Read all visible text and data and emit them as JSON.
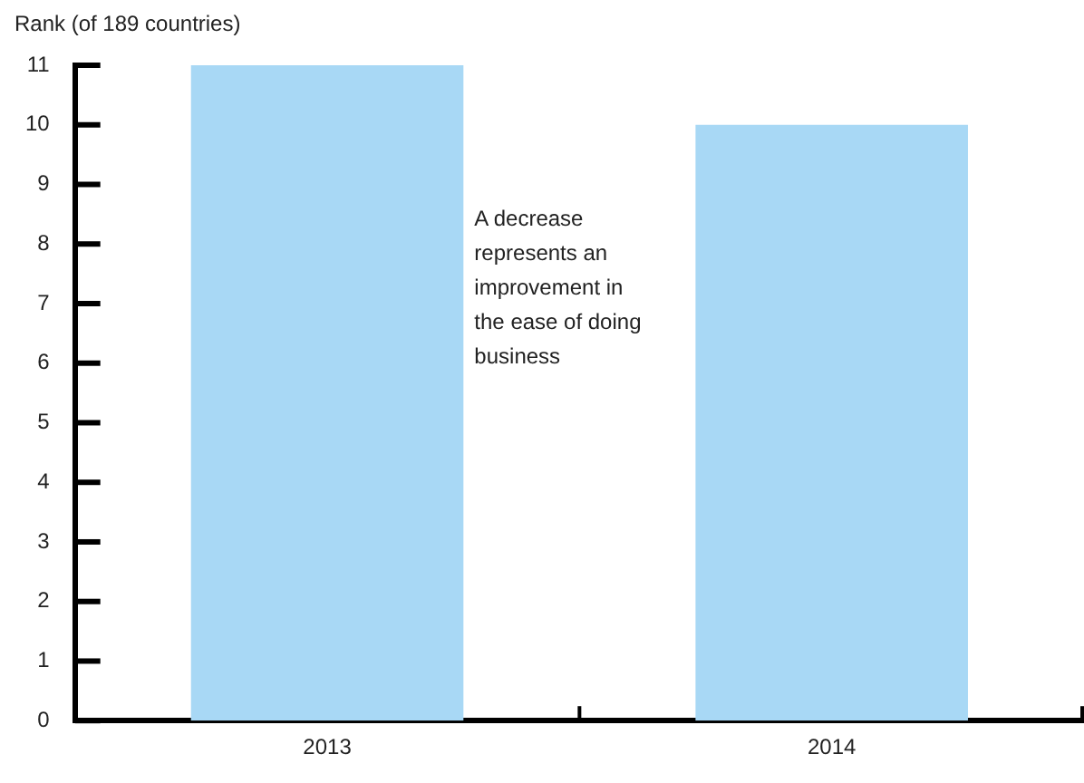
{
  "chart_data": {
    "type": "bar",
    "ylabel": "Rank (of 189 countries)",
    "categories": [
      "2013",
      "2014"
    ],
    "values": [
      11,
      10
    ],
    "color": "#a8d8f5",
    "ylim": [
      0,
      11
    ],
    "yticks": [
      0,
      1,
      2,
      3,
      4,
      5,
      6,
      7,
      8,
      9,
      10,
      11
    ],
    "grid": false,
    "legend": false,
    "annotations": [
      "A decrease represents an improvement in the ease of doing business"
    ]
  }
}
